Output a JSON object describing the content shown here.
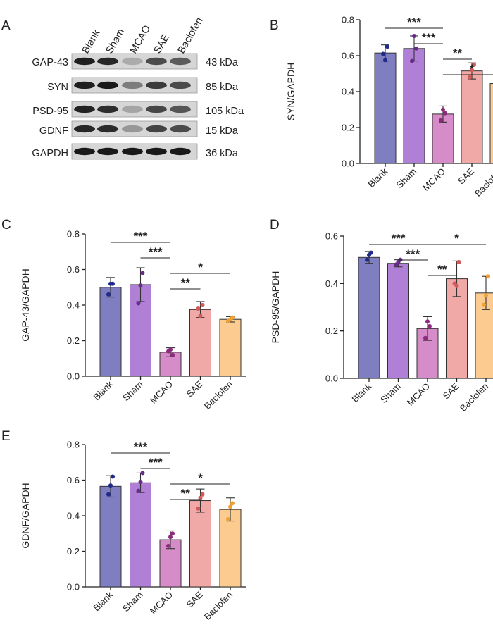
{
  "panel_letters": [
    "A",
    "B",
    "C",
    "D",
    "E"
  ],
  "blot": {
    "lanes": [
      "Blank",
      "Sham",
      "MCAO",
      "SAE",
      "Baclofen"
    ],
    "rows": [
      {
        "protein": "GAP-43",
        "mw": "43  kDa",
        "intensity": [
          0.92,
          0.88,
          0.22,
          0.7,
          0.62
        ]
      },
      {
        "protein": "SYN",
        "mw": "85  kDa",
        "intensity": [
          0.92,
          0.95,
          0.45,
          0.78,
          0.7
        ]
      },
      {
        "protein": "PSD-95",
        "mw": "105 kDa",
        "intensity": [
          0.9,
          0.85,
          0.25,
          0.72,
          0.65
        ]
      },
      {
        "protein": "GDNF",
        "mw": "15  kDa",
        "intensity": [
          0.88,
          0.86,
          0.32,
          0.74,
          0.7
        ]
      },
      {
        "protein": "GAPDH",
        "mw": "36  kDa",
        "intensity": [
          0.95,
          0.95,
          0.95,
          0.95,
          0.95
        ]
      }
    ]
  },
  "colors": {
    "Blank": "#7E7EC0",
    "Sham": "#B07FD6",
    "MCAO": "#D68CC8",
    "SAE": "#F1A9A7",
    "Baclofen": "#FBCB8F",
    "dot_Blank": "#1F2A8A",
    "dot_Sham": "#6A2A8E",
    "dot_MCAO": "#8E2A7E",
    "dot_SAE": "#D25A5A",
    "dot_Baclofen": "#F0A030"
  },
  "chart_data": [
    {
      "panel": "B",
      "type": "bar",
      "categories": [
        "Blank",
        "Sham",
        "MCAO",
        "SAE",
        "Baclofen"
      ],
      "values": [
        0.615,
        0.64,
        0.275,
        0.515,
        0.445
      ],
      "errors": [
        0.045,
        0.07,
        0.045,
        0.045,
        0.065
      ],
      "points": [
        [
          0.61,
          0.575,
          0.65
        ],
        [
          0.57,
          0.71,
          0.64
        ],
        [
          0.24,
          0.3,
          0.28
        ],
        [
          0.48,
          0.52,
          0.55
        ],
        [
          0.38,
          0.51,
          0.44
        ]
      ],
      "ylabel": "SYN/GAPDH",
      "ylim": [
        0,
        0.8
      ],
      "yticks": [
        "0.0",
        "0.2",
        "0.4",
        "0.6",
        "0.8"
      ],
      "significance": [
        {
          "from": 0,
          "to": 2,
          "label": "***",
          "level": 0
        },
        {
          "from": 1,
          "to": 2,
          "label": "***",
          "level": 1
        },
        {
          "from": 2,
          "to": 3,
          "label": "**",
          "level": 2
        },
        {
          "from": 2,
          "to": 4,
          "label": "*",
          "level": 3
        }
      ]
    },
    {
      "panel": "C",
      "type": "bar",
      "categories": [
        "Blank",
        "Sham",
        "MCAO",
        "SAE",
        "Baclofen"
      ],
      "values": [
        0.5,
        0.515,
        0.135,
        0.375,
        0.32
      ],
      "errors": [
        0.055,
        0.095,
        0.025,
        0.045,
        0.015
      ],
      "points": [
        [
          0.46,
          0.52,
          0.52
        ],
        [
          0.41,
          0.51,
          0.58
        ],
        [
          0.14,
          0.15,
          0.12
        ],
        [
          0.38,
          0.34,
          0.4
        ],
        [
          0.31,
          0.32,
          0.33
        ]
      ],
      "ylabel": "GAP-43/GAPDH",
      "ylim": [
        0,
        0.8
      ],
      "yticks": [
        "0.0",
        "0.2",
        "0.4",
        "0.6",
        "0.8"
      ],
      "significance": [
        {
          "from": 0,
          "to": 2,
          "label": "***",
          "level": 0
        },
        {
          "from": 1,
          "to": 2,
          "label": "***",
          "level": 1
        },
        {
          "from": 2,
          "to": 4,
          "label": "*",
          "level": 2
        },
        {
          "from": 2,
          "to": 3,
          "label": "**",
          "level": 3
        }
      ]
    },
    {
      "panel": "D",
      "type": "bar",
      "categories": [
        "Blank",
        "Sham",
        "MCAO",
        "SAE",
        "Baclofen"
      ],
      "values": [
        0.51,
        0.485,
        0.21,
        0.42,
        0.36
      ],
      "errors": [
        0.025,
        0.015,
        0.05,
        0.075,
        0.07
      ],
      "points": [
        [
          0.5,
          0.52,
          0.53
        ],
        [
          0.48,
          0.49,
          0.5
        ],
        [
          0.17,
          0.24,
          0.22
        ],
        [
          0.4,
          0.39,
          0.49
        ],
        [
          0.31,
          0.35,
          0.43
        ]
      ],
      "ylabel": "PSD-95/GAPDH",
      "ylim": [
        0,
        0.6
      ],
      "yticks": [
        "0.0",
        "0.2",
        "0.4",
        "0.6"
      ],
      "significance": [
        {
          "from": 0,
          "to": 2,
          "label": "***",
          "level": 0
        },
        {
          "from": 2,
          "to": 4,
          "label": "*",
          "level": 0
        },
        {
          "from": 1,
          "to": 2,
          "label": "***",
          "level": 1
        },
        {
          "from": 2,
          "to": 3,
          "label": "**",
          "level": 2
        }
      ]
    },
    {
      "panel": "E",
      "type": "bar",
      "categories": [
        "Blank",
        "Sham",
        "MCAO",
        "SAE",
        "Baclofen"
      ],
      "values": [
        0.565,
        0.585,
        0.265,
        0.485,
        0.435
      ],
      "errors": [
        0.06,
        0.055,
        0.05,
        0.065,
        0.065
      ],
      "points": [
        [
          0.52,
          0.57,
          0.62
        ],
        [
          0.54,
          0.59,
          0.64
        ],
        [
          0.23,
          0.28,
          0.3
        ],
        [
          0.44,
          0.5,
          0.52
        ],
        [
          0.38,
          0.45,
          0.47
        ]
      ],
      "ylabel": "GDNF/GAPDH",
      "ylim": [
        0,
        0.8
      ],
      "yticks": [
        "0.0",
        "0.2",
        "0.4",
        "0.6",
        "0.8"
      ],
      "significance": [
        {
          "from": 0,
          "to": 2,
          "label": "***",
          "level": 0
        },
        {
          "from": 1,
          "to": 2,
          "label": "***",
          "level": 1
        },
        {
          "from": 2,
          "to": 4,
          "label": "*",
          "level": 2
        },
        {
          "from": 2,
          "to": 3,
          "label": "**",
          "level": 3
        }
      ]
    }
  ]
}
